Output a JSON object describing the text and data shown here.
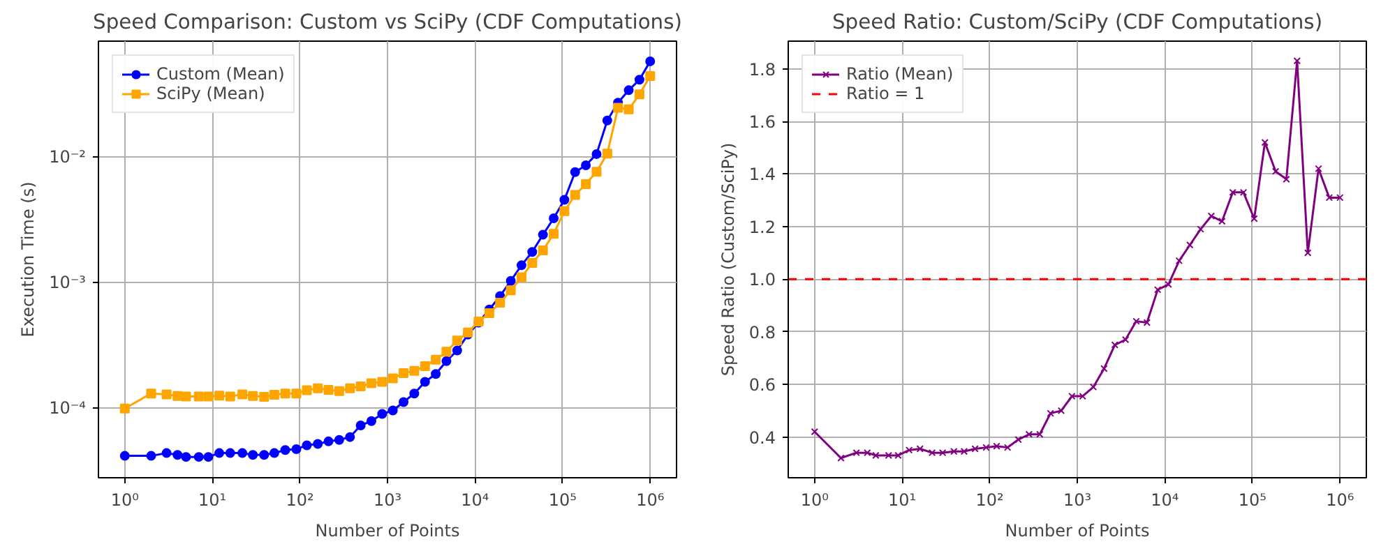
{
  "chart_data": [
    {
      "type": "line",
      "title": "Speed Comparison: Custom vs SciPy (CDF Computations)",
      "xlabel": "Number of Points",
      "ylabel": "Execution Time (s)",
      "log": "xy",
      "grid": true,
      "legend": "top left",
      "x": [
        1,
        2,
        3,
        4,
        5,
        7,
        9,
        12,
        16,
        22,
        29,
        39,
        51,
        68,
        91,
        120,
        160,
        212,
        281,
        373,
        494,
        655,
        869,
        1151,
        1526,
        2023,
        2682,
        3556,
        4714,
        6250,
        8286,
        10985,
        14563,
        19306,
        25595,
        33932,
        44984,
        59636,
        79060,
        104811,
        138949,
        184206,
        244205,
        323745,
        429193,
        568986,
        754312,
        1000000
      ],
      "xlim": [
        0.5,
        2000000
      ],
      "xticks": [
        {
          "value": 1,
          "label": "10⁰"
        },
        {
          "value": 10,
          "label": "10¹"
        },
        {
          "value": 100,
          "label": "10²"
        },
        {
          "value": 1000,
          "label": "10³"
        },
        {
          "value": 10000,
          "label": "10⁴"
        },
        {
          "value": 100000,
          "label": "10⁵"
        },
        {
          "value": 1000000,
          "label": "10⁶"
        }
      ],
      "ylim": [
        2.8e-05,
        0.083
      ],
      "yticks": [
        {
          "value": 0.0001,
          "label": "10⁻⁴"
        },
        {
          "value": 0.001,
          "label": "10⁻³"
        },
        {
          "value": 0.01,
          "label": "10⁻²"
        }
      ],
      "series": [
        {
          "name": "Custom (Mean)",
          "color": "#0000ff",
          "marker": "circle",
          "values": [
            4.18e-05,
            4.18e-05,
            4.4e-05,
            4.25e-05,
            4.1e-05,
            4.1e-05,
            4.1e-05,
            4.4e-05,
            4.4e-05,
            4.4e-05,
            4.25e-05,
            4.25e-05,
            4.4e-05,
            4.65e-05,
            4.73e-05,
            5.07e-05,
            5.2e-05,
            5.45e-05,
            5.6e-05,
            5.9e-05,
            7.3e-05,
            7.9e-05,
            9e-05,
            9.6e-05,
            0.000112,
            0.000131,
            0.000162,
            0.000187,
            0.000237,
            0.000288,
            0.000385,
            0.00048,
            0.00061,
            0.00078,
            0.00103,
            0.00137,
            0.00175,
            0.0024,
            0.00324,
            0.00454,
            0.00755,
            0.00855,
            0.0105,
            0.0194,
            0.0269,
            0.0338,
            0.041,
            0.0574
          ]
        },
        {
          "name": "SciPy (Mean)",
          "color": "#ffa500",
          "marker": "square",
          "values": [
            9.95e-05,
            0.000131,
            0.000129,
            0.000125,
            0.000124,
            0.000124,
            0.000124,
            0.000126,
            0.000124,
            0.000129,
            0.000125,
            0.000123,
            0.000128,
            0.000131,
            0.000131,
            0.000139,
            0.000144,
            0.00014,
            0.000137,
            0.000144,
            0.000149,
            0.000158,
            0.000162,
            0.000173,
            0.00019,
            0.000198,
            0.000216,
            0.000243,
            0.000282,
            0.000345,
            0.0004,
            0.00049,
            0.00057,
            0.00069,
            0.000866,
            0.0011,
            0.00143,
            0.0018,
            0.00244,
            0.00369,
            0.00497,
            0.00606,
            0.0076,
            0.0106,
            0.0245,
            0.0238,
            0.0313,
            0.0438
          ]
        }
      ]
    },
    {
      "type": "line",
      "title": "Speed Ratio: Custom/SciPy (CDF Computations)",
      "xlabel": "Number of Points",
      "ylabel": "Speed Ratio (Custom/SciPy)",
      "log": "x",
      "grid": true,
      "legend": "top left",
      "x": [
        1,
        2,
        3,
        4,
        5,
        7,
        9,
        12,
        16,
        22,
        29,
        39,
        51,
        68,
        91,
        120,
        160,
        212,
        281,
        373,
        494,
        655,
        869,
        1151,
        1526,
        2023,
        2682,
        3556,
        4714,
        6250,
        8286,
        10985,
        14563,
        19306,
        25595,
        33932,
        44984,
        59636,
        79060,
        104811,
        138949,
        184206,
        244205,
        323745,
        429193,
        568986,
        754312,
        1000000
      ],
      "xlim": [
        0.5,
        2000000
      ],
      "xticks": [
        {
          "value": 1,
          "label": "10⁰"
        },
        {
          "value": 10,
          "label": "10¹"
        },
        {
          "value": 100,
          "label": "10²"
        },
        {
          "value": 1000,
          "label": "10³"
        },
        {
          "value": 10000,
          "label": "10⁴"
        },
        {
          "value": 100000,
          "label": "10⁵"
        },
        {
          "value": 1000000,
          "label": "10⁶"
        }
      ],
      "ylim": [
        0.245,
        1.905
      ],
      "yticks": [
        {
          "value": 0.4,
          "label": "0.4"
        },
        {
          "value": 0.6,
          "label": "0.6"
        },
        {
          "value": 0.8,
          "label": "0.8"
        },
        {
          "value": 1.0,
          "label": "1.0"
        },
        {
          "value": 1.2,
          "label": "1.2"
        },
        {
          "value": 1.4,
          "label": "1.4"
        },
        {
          "value": 1.6,
          "label": "1.6"
        },
        {
          "value": 1.8,
          "label": "1.8"
        }
      ],
      "ref_lines": [
        {
          "axis": "y",
          "value": 1,
          "label": "Ratio = 1",
          "color": "#ff0000",
          "line_style": "dashed"
        }
      ],
      "series": [
        {
          "name": "Ratio (Mean)",
          "color": "#800080",
          "marker": "cross",
          "values": [
            0.42,
            0.32,
            0.34,
            0.34,
            0.33,
            0.33,
            0.33,
            0.35,
            0.355,
            0.34,
            0.34,
            0.345,
            0.345,
            0.355,
            0.36,
            0.365,
            0.36,
            0.39,
            0.41,
            0.41,
            0.49,
            0.5,
            0.555,
            0.555,
            0.59,
            0.66,
            0.75,
            0.77,
            0.84,
            0.835,
            0.96,
            0.98,
            1.07,
            1.13,
            1.19,
            1.24,
            1.22,
            1.33,
            1.33,
            1.23,
            1.52,
            1.41,
            1.38,
            1.83,
            1.1,
            1.42,
            1.31,
            1.31
          ]
        }
      ]
    }
  ]
}
